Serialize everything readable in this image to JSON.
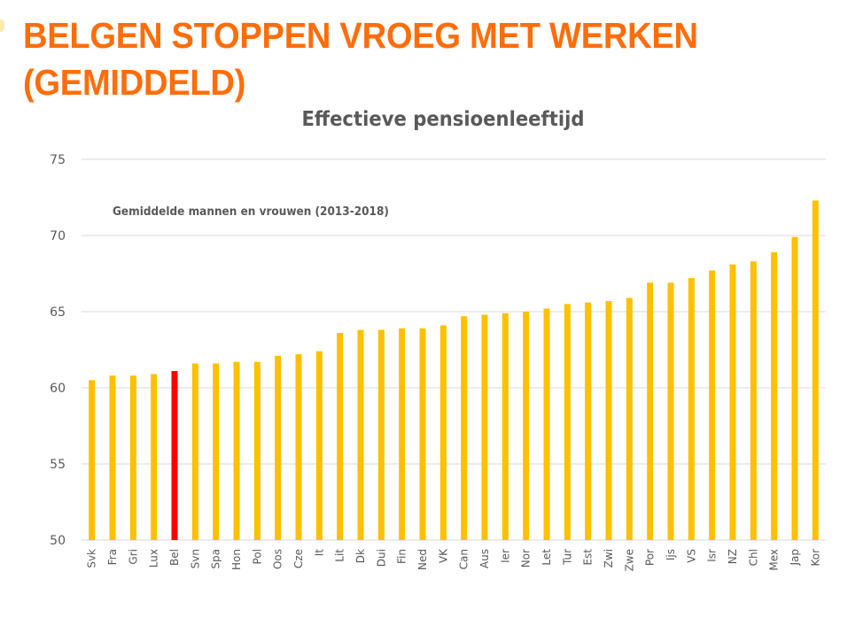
{
  "slide": {
    "title": "BELGEN STOPPEN VROEG MET WERKEN (GEMIDDELD)"
  },
  "chart_data": {
    "type": "bar",
    "title": "Effectieve pensioenleeftijd",
    "annotation": "Gemiddelde mannen en vrouwen (2013-2018)",
    "xlabel": "",
    "ylabel": "",
    "ylim": [
      50,
      75
    ],
    "yticks": [
      50,
      55,
      60,
      65,
      70,
      75
    ],
    "grid": true,
    "legend": "none",
    "categories": [
      "Svk",
      "Fra",
      "Gri",
      "Lux",
      "Bel",
      "Svn",
      "Spa",
      "Hon",
      "Pol",
      "Oos",
      "Cze",
      "It",
      "Lit",
      "Dk",
      "Dui",
      "Fin",
      "Ned",
      "VK",
      "Can",
      "Aus",
      "Ier",
      "Nor",
      "Let",
      "Tur",
      "Est",
      "Zwi",
      "Zwe",
      "Por",
      "Ijs",
      "VS",
      "Isr",
      "NZ",
      "Chl",
      "Mex",
      "Jap",
      "Kor"
    ],
    "values": [
      60.5,
      60.8,
      60.8,
      60.9,
      61.1,
      61.6,
      61.6,
      61.7,
      61.7,
      62.1,
      62.2,
      62.4,
      63.6,
      63.8,
      63.8,
      63.9,
      63.9,
      64.1,
      64.7,
      64.8,
      64.9,
      65.0,
      65.2,
      65.5,
      65.6,
      65.7,
      65.9,
      66.9,
      66.9,
      67.2,
      67.7,
      68.1,
      68.3,
      68.9,
      69.9,
      72.3
    ],
    "highlight_category": "Bel",
    "colors": {
      "bar": "#FFC000",
      "highlight": "#FF0000",
      "grid": "#D9D9D9",
      "text": "#595959",
      "title": "#FF6D0A"
    }
  }
}
